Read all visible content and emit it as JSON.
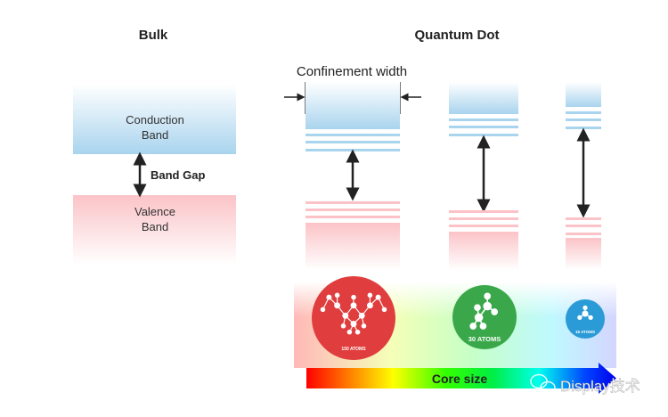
{
  "headings": {
    "bulk": "Bulk",
    "quantum_dot": "Quantum Dot"
  },
  "bulk": {
    "conduction": [
      "Conduction",
      "Band"
    ],
    "valence": [
      "Valence",
      "Band"
    ],
    "gap_label": "Band Gap"
  },
  "confinement_label": "Confinement width",
  "dots": [
    {
      "atoms_label": "150 ATOMS",
      "color": "#e03e3e"
    },
    {
      "atoms_label": "30 ATOMS",
      "color": "#3aa84a"
    },
    {
      "atoms_label": "15 ATOMS",
      "color": "#2a9bd6"
    }
  ],
  "core_size_label": "Core size",
  "watermark": "Display技术",
  "colors": {
    "conduction": "#a9d4ee",
    "valence": "#fbc3c7",
    "arrow": "#222222"
  }
}
